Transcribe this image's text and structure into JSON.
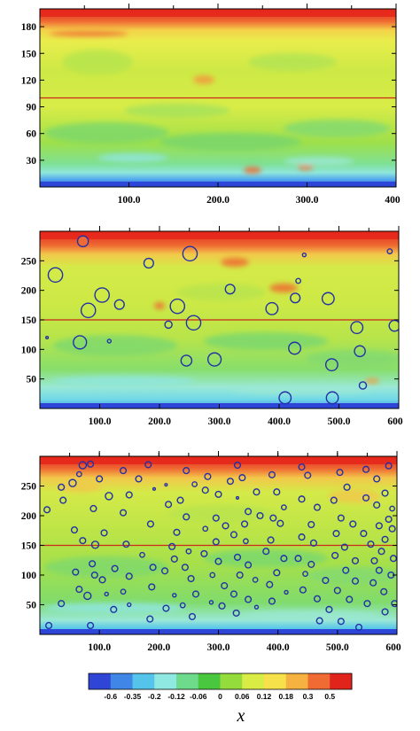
{
  "chart_data": [
    {
      "type": "heatmap",
      "title": "",
      "xlabel": "",
      "ylabel": "",
      "xlim": [
        0,
        400
      ],
      "ylim": [
        0,
        200
      ],
      "xticks": [
        100,
        200,
        300,
        400
      ],
      "xtick_labels": [
        "100.0",
        "200.0",
        "300.0",
        "400"
      ],
      "yticks": [
        30,
        60,
        90,
        120,
        150,
        180
      ],
      "ytick_labels": [
        "30",
        "60",
        "90",
        "120",
        "150",
        "180"
      ],
      "center_line_y": 100,
      "particles": []
    },
    {
      "type": "heatmap",
      "title": "",
      "xlabel": "",
      "ylabel": "",
      "xlim": [
        0,
        600
      ],
      "ylim": [
        0,
        300
      ],
      "xticks": [
        100,
        200,
        300,
        400,
        500,
        600
      ],
      "xtick_labels": [
        "100.0",
        "200.0",
        "300.0",
        "400.0",
        "500.0",
        "600"
      ],
      "yticks": [
        50,
        100,
        150,
        200,
        250
      ],
      "ytick_labels": [
        "50",
        "100",
        "150",
        "200",
        "250"
      ],
      "center_line_y": 150,
      "particles": [
        {
          "x": 72,
          "y": 283,
          "r": 9
        },
        {
          "x": 26,
          "y": 226,
          "r": 12
        },
        {
          "x": 104,
          "y": 192,
          "r": 12
        },
        {
          "x": 81,
          "y": 166,
          "r": 12
        },
        {
          "x": 133,
          "y": 176,
          "r": 8
        },
        {
          "x": 182,
          "y": 246,
          "r": 8
        },
        {
          "x": 251,
          "y": 262,
          "r": 12
        },
        {
          "x": 230,
          "y": 173,
          "r": 12
        },
        {
          "x": 257,
          "y": 145,
          "r": 12
        },
        {
          "x": 215,
          "y": 142,
          "r": 6
        },
        {
          "x": 318,
          "y": 202,
          "r": 8
        },
        {
          "x": 388,
          "y": 169,
          "r": 10
        },
        {
          "x": 427,
          "y": 187,
          "r": 8
        },
        {
          "x": 432,
          "y": 216,
          "r": 4
        },
        {
          "x": 442,
          "y": 260,
          "r": 3
        },
        {
          "x": 482,
          "y": 186,
          "r": 10
        },
        {
          "x": 530,
          "y": 137,
          "r": 10
        },
        {
          "x": 593,
          "y": 140,
          "r": 9
        },
        {
          "x": 585,
          "y": 266,
          "r": 4
        },
        {
          "x": 67,
          "y": 112,
          "r": 11
        },
        {
          "x": 12,
          "y": 120,
          "r": 2
        },
        {
          "x": 116,
          "y": 114,
          "r": 3
        },
        {
          "x": 245,
          "y": 81,
          "r": 9
        },
        {
          "x": 292,
          "y": 83,
          "r": 11
        },
        {
          "x": 426,
          "y": 102,
          "r": 10
        },
        {
          "x": 535,
          "y": 97,
          "r": 9
        },
        {
          "x": 488,
          "y": 74,
          "r": 10
        },
        {
          "x": 540,
          "y": 39,
          "r": 6
        },
        {
          "x": 410,
          "y": 18,
          "r": 10
        },
        {
          "x": 489,
          "y": 18,
          "r": 10
        }
      ]
    },
    {
      "type": "heatmap",
      "title": "",
      "xlabel": "",
      "ylabel": "",
      "xlim": [
        0,
        600
      ],
      "ylim": [
        0,
        300
      ],
      "xticks": [
        100,
        200,
        300,
        400,
        500,
        600
      ],
      "xtick_labels": [
        "100.0",
        "200.0",
        "300.0",
        "400.0",
        "500.0",
        "600"
      ],
      "yticks": [
        50,
        100,
        150,
        200,
        250
      ],
      "ytick_labels": [
        "50",
        "100",
        "150",
        "200",
        "250"
      ],
      "center_line_y": 150,
      "particles": [
        {
          "x": 72,
          "y": 285,
          "r": 6
        },
        {
          "x": 85,
          "y": 287,
          "r": 5
        },
        {
          "x": 36,
          "y": 248,
          "r": 5
        },
        {
          "x": 55,
          "y": 255,
          "r": 6
        },
        {
          "x": 39,
          "y": 226,
          "r": 5
        },
        {
          "x": 12,
          "y": 210,
          "r": 5
        },
        {
          "x": 66,
          "y": 270,
          "r": 4
        },
        {
          "x": 100,
          "y": 262,
          "r": 5
        },
        {
          "x": 116,
          "y": 233,
          "r": 6
        },
        {
          "x": 90,
          "y": 212,
          "r": 5
        },
        {
          "x": 108,
          "y": 171,
          "r": 5
        },
        {
          "x": 93,
          "y": 151,
          "r": 6
        },
        {
          "x": 58,
          "y": 176,
          "r": 5
        },
        {
          "x": 72,
          "y": 158,
          "r": 5
        },
        {
          "x": 88,
          "y": 119,
          "r": 5
        },
        {
          "x": 60,
          "y": 105,
          "r": 5
        },
        {
          "x": 92,
          "y": 100,
          "r": 5
        },
        {
          "x": 105,
          "y": 92,
          "r": 5
        },
        {
          "x": 66,
          "y": 76,
          "r": 5
        },
        {
          "x": 80,
          "y": 65,
          "r": 6
        },
        {
          "x": 112,
          "y": 68,
          "r": 3
        },
        {
          "x": 36,
          "y": 52,
          "r": 5
        },
        {
          "x": 15,
          "y": 15,
          "r": 5
        },
        {
          "x": 85,
          "y": 15,
          "r": 5
        },
        {
          "x": 140,
          "y": 276,
          "r": 5
        },
        {
          "x": 182,
          "y": 286,
          "r": 5
        },
        {
          "x": 166,
          "y": 262,
          "r": 5
        },
        {
          "x": 150,
          "y": 235,
          "r": 5
        },
        {
          "x": 140,
          "y": 205,
          "r": 5
        },
        {
          "x": 192,
          "y": 245,
          "r": 2
        },
        {
          "x": 212,
          "y": 252,
          "r": 2
        },
        {
          "x": 216,
          "y": 219,
          "r": 5
        },
        {
          "x": 186,
          "y": 186,
          "r": 5
        },
        {
          "x": 145,
          "y": 152,
          "r": 5
        },
        {
          "x": 172,
          "y": 134,
          "r": 4
        },
        {
          "x": 190,
          "y": 113,
          "r": 5
        },
        {
          "x": 126,
          "y": 111,
          "r": 5
        },
        {
          "x": 150,
          "y": 98,
          "r": 5
        },
        {
          "x": 188,
          "y": 80,
          "r": 5
        },
        {
          "x": 140,
          "y": 72,
          "r": 4
        },
        {
          "x": 150,
          "y": 50,
          "r": 3
        },
        {
          "x": 124,
          "y": 42,
          "r": 5
        },
        {
          "x": 185,
          "y": 26,
          "r": 5
        },
        {
          "x": 246,
          "y": 276,
          "r": 5
        },
        {
          "x": 260,
          "y": 253,
          "r": 4
        },
        {
          "x": 236,
          "y": 226,
          "r": 5
        },
        {
          "x": 246,
          "y": 198,
          "r": 5
        },
        {
          "x": 230,
          "y": 172,
          "r": 5
        },
        {
          "x": 222,
          "y": 148,
          "r": 5
        },
        {
          "x": 250,
          "y": 140,
          "r": 4
        },
        {
          "x": 226,
          "y": 127,
          "r": 5
        },
        {
          "x": 210,
          "y": 107,
          "r": 5
        },
        {
          "x": 244,
          "y": 113,
          "r": 5
        },
        {
          "x": 254,
          "y": 94,
          "r": 5
        },
        {
          "x": 262,
          "y": 68,
          "r": 5
        },
        {
          "x": 226,
          "y": 66,
          "r": 3
        },
        {
          "x": 212,
          "y": 44,
          "r": 5
        },
        {
          "x": 240,
          "y": 49,
          "r": 4
        },
        {
          "x": 256,
          "y": 30,
          "r": 5
        },
        {
          "x": 282,
          "y": 266,
          "r": 5
        },
        {
          "x": 278,
          "y": 243,
          "r": 5
        },
        {
          "x": 300,
          "y": 236,
          "r": 5
        },
        {
          "x": 296,
          "y": 196,
          "r": 5
        },
        {
          "x": 278,
          "y": 178,
          "r": 4
        },
        {
          "x": 312,
          "y": 183,
          "r": 5
        },
        {
          "x": 296,
          "y": 156,
          "r": 5
        },
        {
          "x": 276,
          "y": 136,
          "r": 5
        },
        {
          "x": 300,
          "y": 123,
          "r": 5
        },
        {
          "x": 290,
          "y": 100,
          "r": 4
        },
        {
          "x": 310,
          "y": 82,
          "r": 5
        },
        {
          "x": 288,
          "y": 54,
          "r": 3
        },
        {
          "x": 306,
          "y": 48,
          "r": 5
        },
        {
          "x": 330,
          "y": 36,
          "r": 5
        },
        {
          "x": 332,
          "y": 285,
          "r": 5
        },
        {
          "x": 320,
          "y": 258,
          "r": 5
        },
        {
          "x": 340,
          "y": 264,
          "r": 5
        },
        {
          "x": 332,
          "y": 230,
          "r": 2
        },
        {
          "x": 364,
          "y": 240,
          "r": 5
        },
        {
          "x": 350,
          "y": 207,
          "r": 5
        },
        {
          "x": 370,
          "y": 200,
          "r": 5
        },
        {
          "x": 344,
          "y": 186,
          "r": 5
        },
        {
          "x": 326,
          "y": 168,
          "r": 5
        },
        {
          "x": 346,
          "y": 157,
          "r": 4
        },
        {
          "x": 332,
          "y": 130,
          "r": 5
        },
        {
          "x": 350,
          "y": 117,
          "r": 5
        },
        {
          "x": 336,
          "y": 100,
          "r": 5
        },
        {
          "x": 362,
          "y": 92,
          "r": 4
        },
        {
          "x": 326,
          "y": 68,
          "r": 5
        },
        {
          "x": 350,
          "y": 59,
          "r": 5
        },
        {
          "x": 364,
          "y": 46,
          "r": 3
        },
        {
          "x": 390,
          "y": 269,
          "r": 5
        },
        {
          "x": 398,
          "y": 240,
          "r": 5
        },
        {
          "x": 410,
          "y": 214,
          "r": 4
        },
        {
          "x": 392,
          "y": 196,
          "r": 5
        },
        {
          "x": 404,
          "y": 187,
          "r": 5
        },
        {
          "x": 388,
          "y": 159,
          "r": 5
        },
        {
          "x": 380,
          "y": 140,
          "r": 5
        },
        {
          "x": 410,
          "y": 128,
          "r": 5
        },
        {
          "x": 398,
          "y": 104,
          "r": 5
        },
        {
          "x": 386,
          "y": 84,
          "r": 5
        },
        {
          "x": 414,
          "y": 71,
          "r": 3
        },
        {
          "x": 390,
          "y": 56,
          "r": 5
        },
        {
          "x": 440,
          "y": 282,
          "r": 5
        },
        {
          "x": 450,
          "y": 268,
          "r": 5
        },
        {
          "x": 440,
          "y": 228,
          "r": 5
        },
        {
          "x": 466,
          "y": 214,
          "r": 5
        },
        {
          "x": 456,
          "y": 185,
          "r": 5
        },
        {
          "x": 440,
          "y": 164,
          "r": 5
        },
        {
          "x": 460,
          "y": 154,
          "r": 5
        },
        {
          "x": 434,
          "y": 128,
          "r": 5
        },
        {
          "x": 456,
          "y": 118,
          "r": 5
        },
        {
          "x": 446,
          "y": 102,
          "r": 4
        },
        {
          "x": 480,
          "y": 91,
          "r": 5
        },
        {
          "x": 442,
          "y": 75,
          "r": 5
        },
        {
          "x": 466,
          "y": 60,
          "r": 5
        },
        {
          "x": 486,
          "y": 42,
          "r": 5
        },
        {
          "x": 470,
          "y": 23,
          "r": 5
        },
        {
          "x": 504,
          "y": 273,
          "r": 5
        },
        {
          "x": 516,
          "y": 248,
          "r": 5
        },
        {
          "x": 494,
          "y": 226,
          "r": 5
        },
        {
          "x": 506,
          "y": 196,
          "r": 5
        },
        {
          "x": 526,
          "y": 186,
          "r": 5
        },
        {
          "x": 498,
          "y": 170,
          "r": 5
        },
        {
          "x": 512,
          "y": 147,
          "r": 5
        },
        {
          "x": 496,
          "y": 133,
          "r": 5
        },
        {
          "x": 530,
          "y": 124,
          "r": 5
        },
        {
          "x": 514,
          "y": 108,
          "r": 5
        },
        {
          "x": 530,
          "y": 90,
          "r": 5
        },
        {
          "x": 500,
          "y": 74,
          "r": 5
        },
        {
          "x": 520,
          "y": 59,
          "r": 5
        },
        {
          "x": 506,
          "y": 22,
          "r": 5
        },
        {
          "x": 536,
          "y": 12,
          "r": 5
        },
        {
          "x": 548,
          "y": 278,
          "r": 5
        },
        {
          "x": 566,
          "y": 262,
          "r": 5
        },
        {
          "x": 586,
          "y": 284,
          "r": 5
        },
        {
          "x": 548,
          "y": 230,
          "r": 5
        },
        {
          "x": 566,
          "y": 218,
          "r": 5
        },
        {
          "x": 580,
          "y": 238,
          "r": 5
        },
        {
          "x": 592,
          "y": 212,
          "r": 4
        },
        {
          "x": 586,
          "y": 194,
          "r": 5
        },
        {
          "x": 570,
          "y": 183,
          "r": 5
        },
        {
          "x": 592,
          "y": 178,
          "r": 5
        },
        {
          "x": 544,
          "y": 170,
          "r": 5
        },
        {
          "x": 556,
          "y": 152,
          "r": 5
        },
        {
          "x": 580,
          "y": 160,
          "r": 5
        },
        {
          "x": 574,
          "y": 140,
          "r": 5
        },
        {
          "x": 594,
          "y": 128,
          "r": 5
        },
        {
          "x": 562,
          "y": 124,
          "r": 5
        },
        {
          "x": 570,
          "y": 108,
          "r": 5
        },
        {
          "x": 590,
          "y": 100,
          "r": 5
        },
        {
          "x": 560,
          "y": 87,
          "r": 5
        },
        {
          "x": 578,
          "y": 72,
          "r": 5
        },
        {
          "x": 550,
          "y": 52,
          "r": 5
        },
        {
          "x": 580,
          "y": 38,
          "r": 5
        },
        {
          "x": 596,
          "y": 52,
          "r": 5
        }
      ]
    }
  ],
  "colorbar": {
    "labels": [
      "-0.6",
      "-0.35",
      "-0.2",
      "-0.12",
      "-0.06",
      "0",
      "0.06",
      "0.12",
      "0.18",
      "0.3",
      "0.5"
    ],
    "colors": [
      "#2f45d6",
      "#3f86e6",
      "#54c4ea",
      "#8fe8e2",
      "#6edb8c",
      "#49c83f",
      "#93dc3c",
      "#d9ec46",
      "#f7e14b",
      "#f5b240",
      "#ef6b33",
      "#e0241c"
    ]
  },
  "x_axis_label": "x",
  "colors": {
    "ocean_bottom": "#2e46d8",
    "top_band": "#e5281c",
    "mid_line": "#cc2a1a",
    "particle_stroke": "#2231a8"
  }
}
